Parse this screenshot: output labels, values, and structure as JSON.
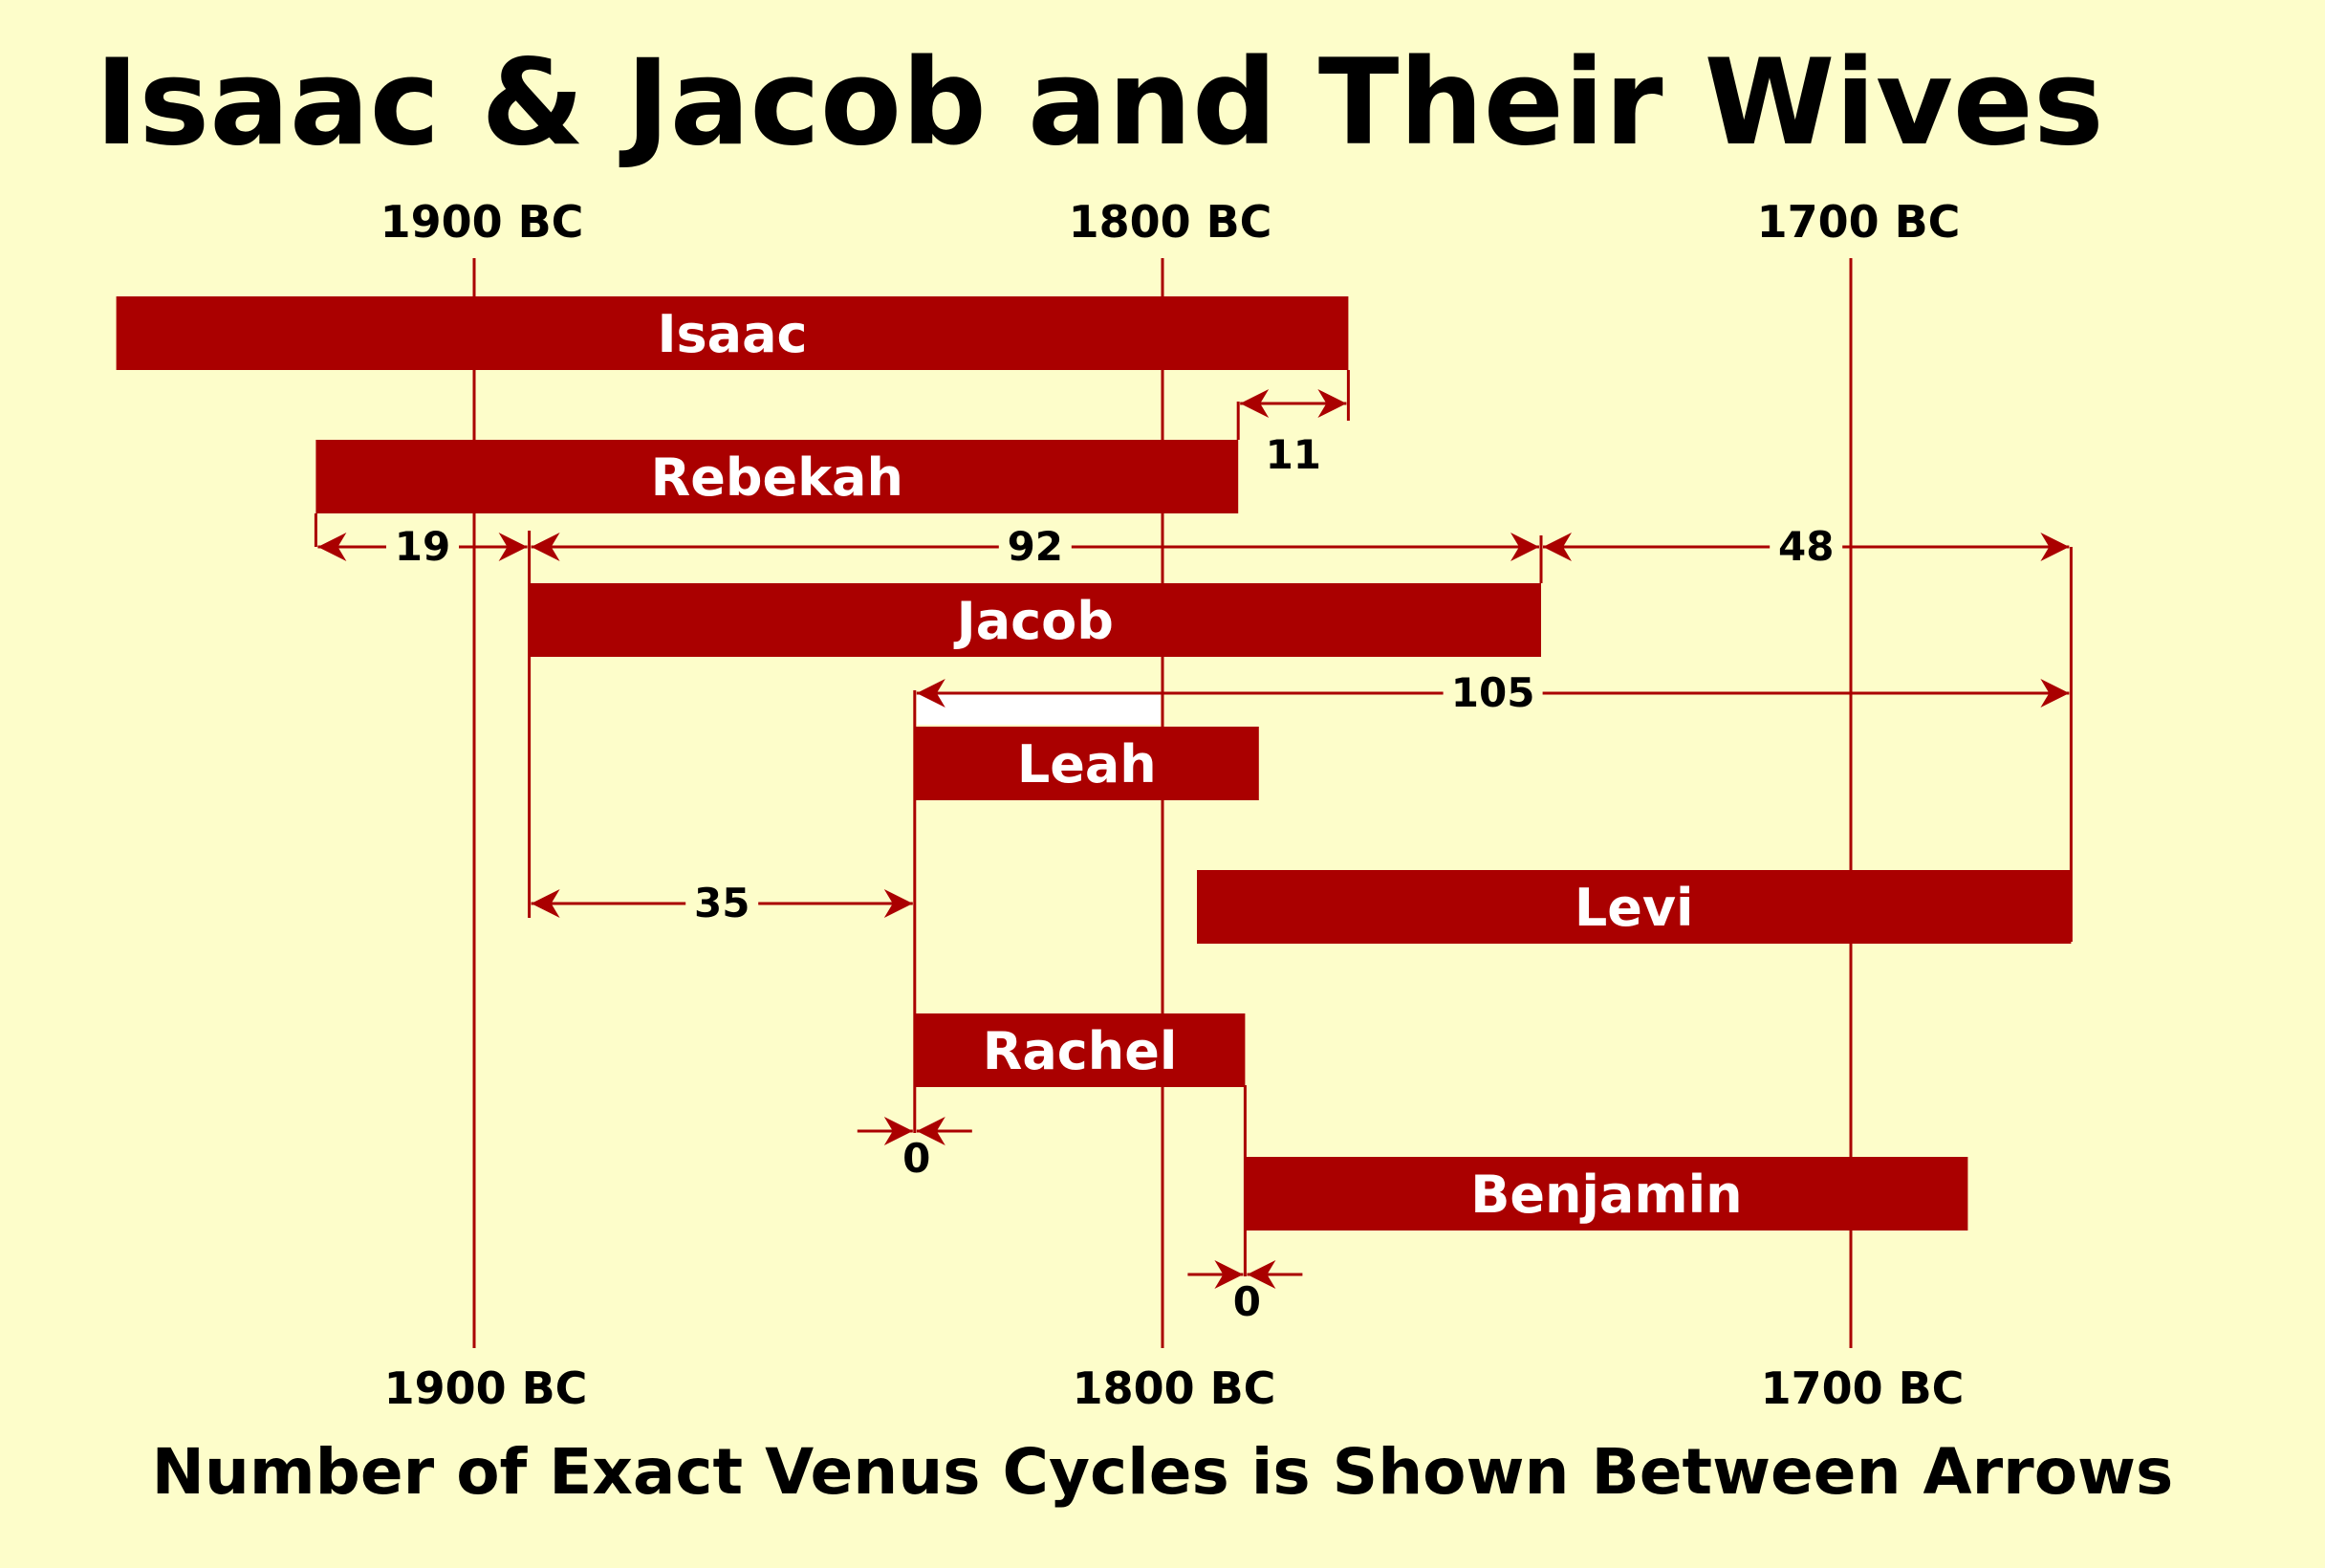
{
  "title": "Isaac & Jacob and Their Wives",
  "subtitle": "Number of Exact Venus Cycles is Shown Between Arrows",
  "axis": {
    "ticks": [
      {
        "year": 1900,
        "label": "1900 BC"
      },
      {
        "year": 1800,
        "label": "1800 BC"
      },
      {
        "year": 1700,
        "label": "1700 BC"
      }
    ]
  },
  "colors": {
    "bar": "#aa0000",
    "line": "#aa0000",
    "background": "#fdfdca"
  },
  "people": [
    {
      "name": "Isaac",
      "from": 1952,
      "to": 1773
    },
    {
      "name": "Rebekah",
      "from": 1923,
      "to": 1789
    },
    {
      "name": "Jacob",
      "from": 1892,
      "to": 1745
    },
    {
      "name": "Leah",
      "from": 1836,
      "to": 1786
    },
    {
      "name": "Levi",
      "from": 1795,
      "to": 1668
    },
    {
      "name": "Rachel",
      "from": 1836,
      "to": 1788
    },
    {
      "name": "Benjamin",
      "from": 1788,
      "to": 1683
    }
  ],
  "intervals": [
    {
      "count": "11",
      "from": 1789,
      "to": 1773
    },
    {
      "count": "19",
      "from": 1923,
      "to": 1892
    },
    {
      "count": "92",
      "from": 1892,
      "to": 1745
    },
    {
      "count": "48",
      "from": 1745,
      "to": 1668
    },
    {
      "count": "105",
      "from": 1836,
      "to": 1668
    },
    {
      "count": "35",
      "from": 1892,
      "to": 1836
    },
    {
      "count": "0",
      "at": 1836
    },
    {
      "count": "0",
      "at": 1788
    }
  ]
}
